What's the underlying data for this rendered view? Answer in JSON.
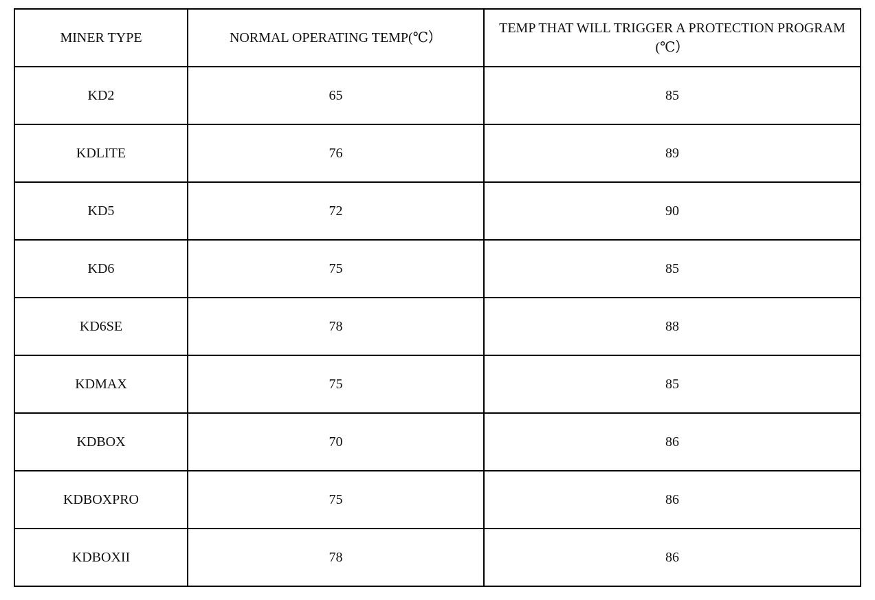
{
  "table": {
    "headers": [
      "MINER TYPE",
      "NORMAL OPERATING TEMP(℃）",
      "TEMP THAT WILL TRIGGER A PROTECTION PROGRAM (℃）"
    ],
    "rows": [
      [
        "KD2",
        "65",
        "85"
      ],
      [
        "KDLITE",
        "76",
        "89"
      ],
      [
        "KD5",
        "72",
        "90"
      ],
      [
        "KD6",
        "75",
        "85"
      ],
      [
        "KD6SE",
        "78",
        "88"
      ],
      [
        "KDMAX",
        "75",
        "85"
      ],
      [
        "KDBOX",
        "70",
        "86"
      ],
      [
        "KDBOXPRO",
        "75",
        "86"
      ],
      [
        "KDBOXII",
        "78",
        "86"
      ]
    ]
  }
}
